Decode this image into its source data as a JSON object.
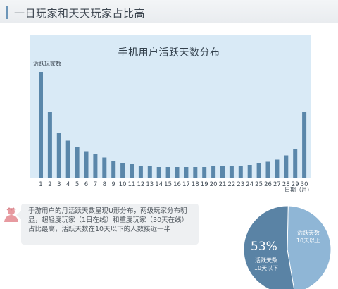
{
  "header": {
    "title": "一日玩家和天天玩家占比高"
  },
  "chart_data": {
    "type": "bar",
    "title": "手机用户活跃天数分布",
    "ylabel": "活跃玩家数",
    "xlabel": "日期（月）",
    "categories": [
      "1",
      "2",
      "3",
      "4",
      "5",
      "6",
      "7",
      "8",
      "9",
      "10",
      "11",
      "12",
      "13",
      "14",
      "15",
      "16",
      "17",
      "18",
      "19",
      "20",
      "21",
      "22",
      "23",
      "24",
      "25",
      "26",
      "27",
      "28",
      "29",
      "30"
    ],
    "values": [
      100,
      62,
      42,
      35,
      29,
      25,
      22,
      19,
      16,
      14,
      13,
      11,
      11,
      10,
      10,
      10,
      10,
      10,
      10,
      11,
      11,
      11,
      11,
      12,
      14,
      15,
      17,
      21,
      27,
      62
    ],
    "ylim": [
      0,
      105
    ],
    "bar_color": "#5a87aa",
    "background_color": "#d9eaf6"
  },
  "note": {
    "icon": "person-icon",
    "text": "手游用户的月活跃天数呈现U形分布，两级玩家分布明显，超轻度玩家（1日在线）和重度玩家（30天在线）占比最高，活跃天数在10天以下的人数接近一半"
  },
  "pie": {
    "type": "pie",
    "slices": [
      {
        "label_line1": "活跃天数",
        "label_line2": "10天以下",
        "percent": "53%",
        "value": 53,
        "color": "#5a83a5"
      },
      {
        "label_line1": "活跃天数",
        "label_line2": "10天以上",
        "percent": "",
        "value": 47,
        "color": "#8fb6d6"
      }
    ]
  }
}
